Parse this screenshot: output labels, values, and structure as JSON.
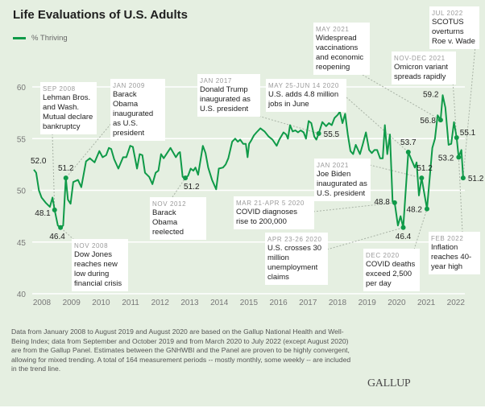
{
  "chart_data": {
    "type": "line",
    "title": "Life Evaluations of U.S. Adults",
    "xlabel": "",
    "ylabel": "",
    "ylim": [
      40,
      60
    ],
    "xlim": [
      2008,
      2022.5
    ],
    "yticks": [
      "40",
      "45",
      "50",
      "55",
      "60"
    ],
    "xticks": [
      "2008",
      "2009",
      "2010",
      "2011",
      "2012",
      "2013",
      "2014",
      "2015",
      "2016",
      "2017",
      "2018",
      "2019",
      "2020",
      "2021",
      "2022"
    ],
    "grid": true,
    "legend_position": "top-left",
    "series": [
      {
        "name": "% Thriving",
        "color": "#0f9a48",
        "points": [
          [
            2008.0,
            52.0
          ],
          [
            2008.08,
            51.7
          ],
          [
            2008.17,
            50.0
          ],
          [
            2008.26,
            49.3
          ],
          [
            2008.4,
            48.8
          ],
          [
            2008.54,
            48.4
          ],
          [
            2008.63,
            49.3
          ],
          [
            2008.7,
            48.1
          ],
          [
            2008.81,
            46.6
          ],
          [
            2008.9,
            46.4
          ],
          [
            2008.99,
            46.6
          ],
          [
            2009.08,
            51.2
          ],
          [
            2009.15,
            49.1
          ],
          [
            2009.24,
            48.7
          ],
          [
            2009.33,
            50.8
          ],
          [
            2009.49,
            51.0
          ],
          [
            2009.6,
            50.3
          ],
          [
            2009.76,
            52.8
          ],
          [
            2009.89,
            53.1
          ],
          [
            2010.05,
            52.7
          ],
          [
            2010.21,
            53.8
          ],
          [
            2010.32,
            53.2
          ],
          [
            2010.44,
            53.4
          ],
          [
            2010.53,
            54.1
          ],
          [
            2010.61,
            54.0
          ],
          [
            2010.71,
            53.0
          ],
          [
            2010.85,
            52.1
          ],
          [
            2011.01,
            53.2
          ],
          [
            2011.12,
            53.2
          ],
          [
            2011.25,
            54.3
          ],
          [
            2011.34,
            54.2
          ],
          [
            2011.48,
            52.1
          ],
          [
            2011.57,
            53.5
          ],
          [
            2011.66,
            53.4
          ],
          [
            2011.75,
            51.7
          ],
          [
            2011.89,
            51.3
          ],
          [
            2012.0,
            50.6
          ],
          [
            2012.11,
            51.7
          ],
          [
            2012.2,
            51.9
          ],
          [
            2012.29,
            53.5
          ],
          [
            2012.38,
            53.1
          ],
          [
            2012.61,
            54.1
          ],
          [
            2012.79,
            53.2
          ],
          [
            2012.88,
            53.6
          ],
          [
            2012.93,
            53.7
          ],
          [
            2013.02,
            51.3
          ],
          [
            2013.11,
            51.2
          ],
          [
            2013.2,
            51.4
          ],
          [
            2013.29,
            52.1
          ],
          [
            2013.38,
            51.9
          ],
          [
            2013.45,
            52.2
          ],
          [
            2013.54,
            51.5
          ],
          [
            2013.7,
            54.3
          ],
          [
            2013.79,
            53.6
          ],
          [
            2013.88,
            52.2
          ],
          [
            2014.01,
            51.0
          ],
          [
            2014.15,
            50.1
          ],
          [
            2014.24,
            52.1
          ],
          [
            2014.38,
            52.2
          ],
          [
            2014.47,
            52.5
          ],
          [
            2014.56,
            53.1
          ],
          [
            2014.69,
            54.7
          ],
          [
            2014.79,
            55.0
          ],
          [
            2014.88,
            54.7
          ],
          [
            2014.96,
            54.9
          ],
          [
            2015.06,
            54.5
          ],
          [
            2015.15,
            54.5
          ],
          [
            2015.21,
            53.2
          ],
          [
            2015.26,
            54.5
          ],
          [
            2015.33,
            54.8
          ],
          [
            2015.42,
            55.3
          ],
          [
            2015.51,
            55.6
          ],
          [
            2015.64,
            56.0
          ],
          [
            2015.78,
            55.7
          ],
          [
            2015.92,
            55.2
          ],
          [
            2016.05,
            54.9
          ],
          [
            2016.19,
            54.3
          ],
          [
            2016.28,
            54.9
          ],
          [
            2016.42,
            55.6
          ],
          [
            2016.51,
            55.4
          ],
          [
            2016.57,
            55.0
          ],
          [
            2016.64,
            56.3
          ],
          [
            2016.73,
            55.7
          ],
          [
            2016.82,
            55.8
          ],
          [
            2016.91,
            55.6
          ],
          [
            2017.0,
            55.8
          ],
          [
            2017.1,
            55.6
          ],
          [
            2017.18,
            55.0
          ],
          [
            2017.27,
            56.7
          ],
          [
            2017.36,
            56.5
          ],
          [
            2017.46,
            55.2
          ],
          [
            2017.53,
            54.9
          ],
          [
            2017.61,
            55.5
          ],
          [
            2017.73,
            56.6
          ],
          [
            2017.86,
            56.2
          ],
          [
            2017.95,
            56.5
          ],
          [
            2018.05,
            56.3
          ],
          [
            2018.14,
            57.0
          ],
          [
            2018.25,
            57.3
          ],
          [
            2018.32,
            57.6
          ],
          [
            2018.41,
            56.5
          ],
          [
            2018.5,
            57.4
          ],
          [
            2018.59,
            55.4
          ],
          [
            2018.68,
            53.8
          ],
          [
            2018.77,
            53.5
          ],
          [
            2018.86,
            54.4
          ],
          [
            2019.0,
            53.5
          ],
          [
            2019.09,
            54.4
          ],
          [
            2019.2,
            55.6
          ],
          [
            2019.31,
            53.9
          ],
          [
            2019.4,
            53.6
          ],
          [
            2019.49,
            53.9
          ],
          [
            2019.58,
            53.9
          ],
          [
            2019.68,
            53.1
          ],
          [
            2019.77,
            53.1
          ],
          [
            2019.84,
            56.3
          ],
          [
            2019.92,
            53.5
          ],
          [
            2020.01,
            55.4
          ],
          [
            2020.1,
            48.9
          ],
          [
            2020.17,
            48.8
          ],
          [
            2020.28,
            46.6
          ],
          [
            2020.37,
            47.5
          ],
          [
            2020.46,
            46.4
          ],
          [
            2020.63,
            53.7
          ],
          [
            2020.76,
            52.8
          ],
          [
            2020.85,
            52.2
          ],
          [
            2020.91,
            52.7
          ],
          [
            2020.99,
            49.5
          ],
          [
            2021.08,
            51.2
          ],
          [
            2021.26,
            48.2
          ],
          [
            2021.44,
            54.1
          ],
          [
            2021.53,
            55.0
          ],
          [
            2021.62,
            57.25
          ],
          [
            2021.72,
            56.8
          ],
          [
            2021.79,
            59.2
          ],
          [
            2021.88,
            58.0
          ],
          [
            2021.99,
            54.4
          ],
          [
            2022.08,
            54.5
          ],
          [
            2022.17,
            56.6
          ],
          [
            2022.26,
            55.1
          ],
          [
            2022.33,
            53.2
          ],
          [
            2022.42,
            53.9
          ],
          [
            2022.48,
            51.2
          ]
        ]
      }
    ],
    "data_labels": [
      {
        "x": 2008.0,
        "y": 52.0,
        "label": "52.0",
        "dot": false
      },
      {
        "x": 2008.7,
        "y": 48.1,
        "label": "48.1",
        "dot": true
      },
      {
        "x": 2008.9,
        "y": 46.4,
        "label": "46.4",
        "dot": true
      },
      {
        "x": 2009.08,
        "y": 51.2,
        "label": "51.2",
        "dot": true
      },
      {
        "x": 2013.11,
        "y": 51.2,
        "label": "51.2",
        "dot": true
      },
      {
        "x": 2017.61,
        "y": 55.5,
        "label": "55.5",
        "dot": true
      },
      {
        "x": 2020.17,
        "y": 48.8,
        "label": "48.8",
        "dot": true
      },
      {
        "x": 2020.46,
        "y": 46.4,
        "label": "46.4",
        "dot": true
      },
      {
        "x": 2020.63,
        "y": 53.7,
        "label": "53.7",
        "dot": true
      },
      {
        "x": 2021.08,
        "y": 51.2,
        "label": "51.2",
        "dot": true
      },
      {
        "x": 2021.26,
        "y": 48.2,
        "label": "48.2",
        "dot": true
      },
      {
        "x": 2021.72,
        "y": 56.8,
        "label": "56.8",
        "dot": true
      },
      {
        "x": 2021.79,
        "y": 59.2,
        "label": "59.2",
        "dot": false
      },
      {
        "x": 2022.26,
        "y": 55.1,
        "label": "55.1",
        "dot": true
      },
      {
        "x": 2022.33,
        "y": 53.2,
        "label": "53.2",
        "dot": true
      },
      {
        "x": 2022.48,
        "y": 51.2,
        "label": "51.2",
        "dot": true
      }
    ],
    "annotations": [
      {
        "date": "SEP 2008",
        "text": "Lehman Bros. and Wash. Mutual declare bankruptcy",
        "target": [
          2008.7,
          48.1
        ]
      },
      {
        "date": "JAN 2009",
        "text": "Barack Obama inaugurated as U.S. president",
        "target": [
          2009.08,
          51.2
        ]
      },
      {
        "date": "JAN 2017",
        "text": "Donald Trump inaugurated as U.S. president",
        "target": [
          2017.61,
          55.5
        ]
      },
      {
        "date": "MAY 25-JUN 14 2020",
        "text": "U.S. adds 4.8 million jobs in June",
        "target": [
          2020.63,
          53.7
        ]
      },
      {
        "date": "MAY 2021",
        "text": "Widespread vaccinations and economic reopening",
        "target": [
          2021.72,
          56.8
        ]
      },
      {
        "date": "NOV-DEC 2021",
        "text": "Omicron variant spreads rapidly",
        "target": [
          2022.26,
          55.1
        ]
      },
      {
        "date": "JUL 2022",
        "text": "SCOTUS overturns Roe v. Wade",
        "target": [
          2022.48,
          51.2
        ]
      },
      {
        "date": "NOV 2012",
        "text": "Barack Obama reelected",
        "target": [
          2013.11,
          51.2
        ]
      },
      {
        "date": "MAR 21-APR 5 2020",
        "text": "COVID diagnoses rise to 200,000",
        "target": [
          2020.17,
          48.8
        ]
      },
      {
        "date": "APR 23-26 2020",
        "text": "U.S. crosses 30 million unemployment claims",
        "target": [
          2020.46,
          46.4
        ]
      },
      {
        "date": "JAN 2021",
        "text": "Joe Biden inaugurated as U.S. president",
        "target": [
          2021.08,
          51.2
        ]
      },
      {
        "date": "DEC 2020",
        "text": "COVID deaths exceed 2,500 per day",
        "target": [
          2021.26,
          48.2
        ]
      },
      {
        "date": "NOV 2008",
        "text": "Dow Jones reaches new low during financial crisis",
        "target": [
          2008.9,
          46.4
        ]
      },
      {
        "date": "FEB 2022",
        "text": "Inflation reaches 40-year high",
        "target": [
          2022.33,
          53.2
        ]
      }
    ]
  },
  "title": "Life Evaluations of U.S. Adults",
  "legend": {
    "label": "% Thriving",
    "color": "#0f9a48"
  },
  "footnote": "Data from January 2008 to August 2019 and August 2020 are based on the Gallup National Health and Well-Being Index; data from September and October 2019 and from March 2020 to July 2022 (except August 2020) are from the Gallup Panel. Estimates between the GNHWBI and the Panel are proven to be highly convergent, allowing for mixed trending. A total of 164 measurement periods -- mostly monthly, some weekly -- are included in the trend line.",
  "logo": "GALLUP"
}
